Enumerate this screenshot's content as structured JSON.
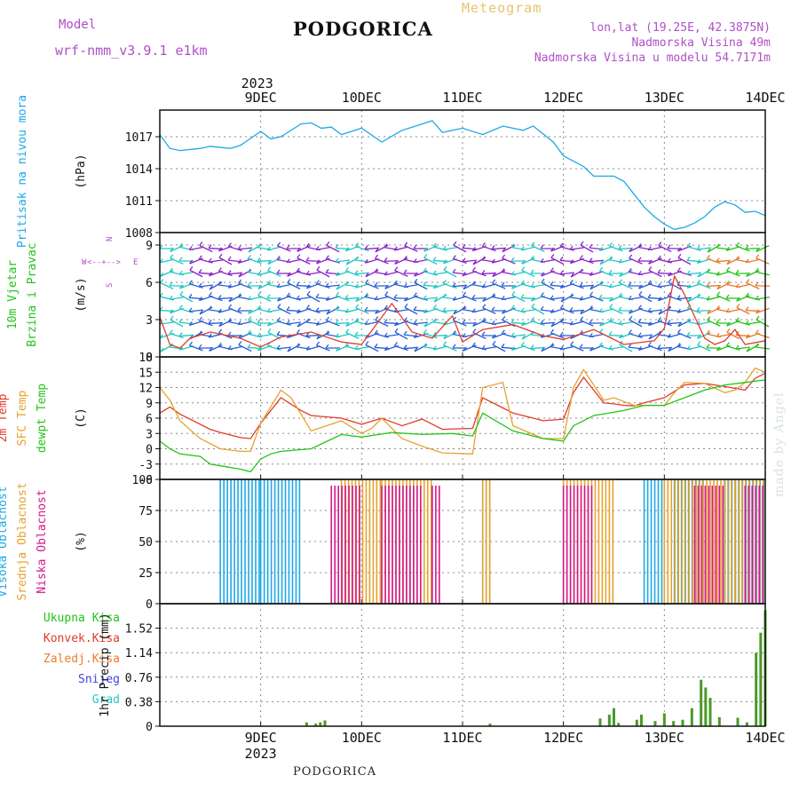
{
  "header": {
    "title": "PODGORICA",
    "meteogram": "Meteogram",
    "model_label": "Model",
    "model_name": "wrf-nmm_v3.9.1  e1km",
    "lonlat": "lon,lat (19.25E, 42.3875N)",
    "elevation": "Nadmorska Visina 49m",
    "elevation_model": "Nadmorska Visina u modelu 54.7171m"
  },
  "footer": "PODGORICA",
  "watermark": "made by Angel",
  "chart_data": {
    "type": "line",
    "time_axis": {
      "top_year": "2023",
      "bottom_year": "2023",
      "day_labels": [
        "9DEC",
        "10DEC",
        "11DEC",
        "12DEC",
        "13DEC",
        "14DEC"
      ],
      "start": "2023-12-08 12:00",
      "end": "2023-12-14 12:00"
    },
    "panels": [
      {
        "id": "pressure",
        "ylabel_lines": [
          {
            "text": "Pritisak na nivou mora",
            "color": "#1ea8e6"
          },
          {
            "text": "(hPa)",
            "color": "#111111"
          }
        ],
        "ylim": [
          1008,
          1019.5
        ],
        "yticks": [
          "1008",
          "1011",
          "1014",
          "1017"
        ],
        "series": [
          {
            "color": "#1ea8e6",
            "x": [
              0,
              0.1,
              0.2,
              0.4,
              0.5,
              0.7,
              0.8,
              1.0,
              1.1,
              1.2,
              1.4,
              1.5,
              1.6,
              1.7,
              1.8,
              2.0,
              2.2,
              2.4,
              2.5,
              2.7,
              2.8,
              3.0,
              3.2,
              3.4,
              3.6,
              3.7,
              3.9,
              4.0,
              4.2,
              4.3,
              4.5,
              4.6,
              4.7,
              4.8,
              4.9,
              5.0,
              5.1,
              5.2,
              5.3,
              5.4,
              5.5,
              5.6,
              5.7,
              5.8,
              5.9,
              6.0
            ],
            "y": [
              1017.2,
              1015.9,
              1015.7,
              1015.9,
              1016.1,
              1015.9,
              1016.2,
              1017.5,
              1016.8,
              1017.0,
              1018.2,
              1018.3,
              1017.8,
              1017.9,
              1017.2,
              1017.8,
              1016.5,
              1017.6,
              1017.9,
              1018.5,
              1017.4,
              1017.8,
              1017.2,
              1018.0,
              1017.6,
              1018.0,
              1016.5,
              1015.2,
              1014.2,
              1013.3,
              1013.3,
              1012.8,
              1011.6,
              1010.4,
              1009.5,
              1008.8,
              1008.3,
              1008.5,
              1008.9,
              1009.5,
              1010.4,
              1010.9,
              1010.6,
              1009.9,
              1010.0,
              1009.6
            ]
          }
        ]
      },
      {
        "id": "wind",
        "ylabel_lines": [
          {
            "text": "10m Vjetar",
            "color": "#22c41a"
          },
          {
            "text": "Brzina i Pravac",
            "color": "#22c41a"
          },
          {
            "text": "(m/s)",
            "color": "#111111"
          }
        ],
        "compass": [
          "W",
          "E",
          "N",
          "S"
        ],
        "ylim": [
          0,
          10
        ],
        "yticks": [
          "0",
          "3",
          "6",
          "9"
        ],
        "series": [
          {
            "color": "#e23a2a",
            "x": [
              0,
              0.1,
              0.2,
              0.3,
              0.5,
              0.8,
              1.0,
              1.2,
              1.5,
              1.8,
              2.0,
              2.3,
              2.5,
              2.7,
              2.9,
              3.0,
              3.2,
              3.5,
              3.8,
              4.0,
              4.3,
              4.6,
              4.9,
              5.0,
              5.1,
              5.2,
              5.4,
              5.5,
              5.6,
              5.7,
              5.8,
              6.0
            ],
            "y": [
              3.2,
              1.0,
              0.7,
              1.5,
              2.0,
              1.5,
              0.8,
              1.6,
              2.0,
              1.2,
              1.0,
              4.3,
              2.0,
              1.5,
              3.3,
              1.2,
              2.2,
              2.6,
              1.7,
              1.4,
              2.2,
              1.0,
              1.3,
              2.3,
              6.5,
              5.0,
              1.5,
              1.0,
              1.3,
              2.2,
              1.0,
              1.3
            ]
          }
        ]
      },
      {
        "id": "temperature",
        "ylabel_lines": [
          {
            "text": "2m Temp",
            "color": "#e23a2a"
          },
          {
            "text": "SFC Temp",
            "color": "#e6a32e"
          },
          {
            "text": "dewpt Temp",
            "color": "#22c41a"
          },
          {
            "text": "(C)",
            "color": "#111111"
          }
        ],
        "ylim": [
          -6,
          18
        ],
        "yticks": [
          "-6",
          "-3",
          "0",
          "3",
          "6",
          "9",
          "12",
          "15",
          "18"
        ],
        "series": [
          {
            "name": "2m Temp",
            "color": "#e23a2a",
            "x": [
              0,
              0.1,
              0.2,
              0.5,
              0.6,
              0.8,
              0.9,
              1.0,
              1.2,
              1.4,
              1.5,
              1.8,
              2.0,
              2.2,
              2.4,
              2.6,
              2.8,
              3.1,
              3.2,
              3.4,
              3.5,
              3.8,
              4.0,
              4.1,
              4.2,
              4.4,
              4.5,
              4.6,
              4.7,
              4.8,
              5.0,
              5.2,
              5.4,
              5.6,
              5.8,
              5.9,
              6.0
            ],
            "y": [
              7.0,
              8.2,
              6.8,
              3.8,
              3.2,
              2.2,
              2.0,
              5.0,
              10.0,
              7.5,
              6.5,
              6.0,
              4.8,
              6.0,
              4.5,
              5.8,
              3.8,
              4.0,
              10.0,
              8.0,
              7.0,
              5.5,
              5.8,
              11.0,
              14.0,
              9.0,
              8.8,
              8.5,
              8.4,
              9.0,
              10.0,
              12.5,
              12.8,
              12.2,
              11.5,
              13.8,
              14.8
            ]
          },
          {
            "name": "SFC Temp",
            "color": "#e6a32e",
            "x": [
              0,
              0.1,
              0.2,
              0.4,
              0.6,
              0.8,
              0.9,
              1.0,
              1.2,
              1.3,
              1.5,
              1.8,
              2.0,
              2.1,
              2.2,
              2.4,
              2.6,
              2.8,
              3.1,
              3.2,
              3.4,
              3.5,
              3.8,
              4.0,
              4.1,
              4.2,
              4.4,
              4.5,
              4.7,
              5.0,
              5.1,
              5.2,
              5.4,
              5.6,
              5.7,
              5.8,
              5.9,
              6.0
            ],
            "y": [
              12.0,
              9.5,
              5.5,
              2.0,
              0.0,
              -0.5,
              -0.5,
              5.0,
              11.5,
              10.0,
              3.5,
              5.5,
              3.0,
              4.0,
              6.0,
              2.0,
              0.5,
              -0.8,
              -1.0,
              12.0,
              13.0,
              4.5,
              2.0,
              2.0,
              12.0,
              15.5,
              9.5,
              10.0,
              8.5,
              8.5,
              11.0,
              13.0,
              12.8,
              11.0,
              11.5,
              13.0,
              15.8,
              15.0
            ]
          },
          {
            "name": "dewpt Temp",
            "color": "#22c41a",
            "x": [
              0,
              0.1,
              0.2,
              0.4,
              0.5,
              0.8,
              0.9,
              1.0,
              1.1,
              1.2,
              1.5,
              1.8,
              2.0,
              2.3,
              2.6,
              2.9,
              3.1,
              3.2,
              3.5,
              3.8,
              4.0,
              4.1,
              4.3,
              4.6,
              4.8,
              5.0,
              5.2,
              5.4,
              5.6,
              5.8,
              6.0
            ],
            "y": [
              1.5,
              0.0,
              -1.0,
              -1.5,
              -3.0,
              -4.0,
              -4.5,
              -2.0,
              -1.0,
              -0.5,
              0.0,
              2.8,
              2.3,
              3.2,
              2.8,
              3.0,
              2.5,
              7.0,
              3.5,
              2.0,
              1.5,
              4.5,
              6.5,
              7.5,
              8.5,
              8.5,
              10.0,
              11.5,
              12.5,
              13.0,
              13.5
            ]
          }
        ]
      },
      {
        "id": "clouds",
        "ylabel_lines": [
          {
            "text": "Visoka Oblacnost",
            "color": "#1ea8e6"
          },
          {
            "text": "Srednja Oblacnost",
            "color": "#e6a32e"
          },
          {
            "text": "Niska Oblacnost",
            "color": "#d4188f"
          },
          {
            "text": "(%)",
            "color": "#111111"
          }
        ],
        "ylim": [
          0,
          100
        ],
        "yticks": [
          "0",
          "25",
          "50",
          "75",
          "100"
        ],
        "bar_groups": [
          {
            "name": "Visoka Oblacnost",
            "color": "#1ea8e6",
            "from": [
              0.6,
              1.0,
              3.2,
              4.8,
              5.1,
              5.6
            ],
            "to": [
              1.0,
              1.4,
              3.3,
              5.0,
              5.4,
              6.0
            ],
            "value": 100
          },
          {
            "name": "Srednja Oblacnost",
            "color": "#e6a32e",
            "from": [
              1.8,
              2.2,
              3.2,
              4.0,
              5.0,
              5.7
            ],
            "to": [
              2.2,
              2.7,
              3.3,
              4.5,
              5.8,
              6.0
            ],
            "value": 100
          },
          {
            "name": "Niska Oblacnost",
            "color": "#d4188f",
            "from": [
              1.7,
              2.2,
              2.7,
              4.0,
              5.3,
              5.8
            ],
            "to": [
              2.0,
              2.6,
              2.8,
              4.3,
              5.6,
              6.0
            ],
            "value": 95
          }
        ]
      },
      {
        "id": "precip",
        "ylabel_lines": [
          {
            "text": "1hr Precip (mm)",
            "color": "#111111"
          }
        ],
        "legend": [
          {
            "text": "Ukupna Kisa",
            "color": "#22c41a"
          },
          {
            "text": "Konvek.Kisa",
            "color": "#e23a2a"
          },
          {
            "text": "Zaledj.Kisa",
            "color": "#ee7a2a"
          },
          {
            "text": "Snijeg",
            "color": "#4444dd"
          },
          {
            "text": "Grad",
            "color": "#22c8c0"
          }
        ],
        "ylim": [
          0,
          1.9
        ],
        "yticks": [
          "0",
          "0.38",
          "0.76",
          "1.14",
          "1.52"
        ],
        "bars": [
          {
            "x": 1.6,
            "v": 0.06
          },
          {
            "x": 1.7,
            "v": 0.04
          },
          {
            "x": 1.75,
            "v": 0.06
          },
          {
            "x": 1.8,
            "v": 0.09
          },
          {
            "x": 3.6,
            "v": 0.04
          },
          {
            "x": 4.8,
            "v": 0.12
          },
          {
            "x": 4.9,
            "v": 0.18
          },
          {
            "x": 4.95,
            "v": 0.28
          },
          {
            "x": 5.0,
            "v": 0.05
          },
          {
            "x": 5.2,
            "v": 0.1
          },
          {
            "x": 5.25,
            "v": 0.18
          },
          {
            "x": 5.4,
            "v": 0.08
          },
          {
            "x": 5.5,
            "v": 0.2
          },
          {
            "x": 5.6,
            "v": 0.08
          },
          {
            "x": 5.7,
            "v": 0.1
          },
          {
            "x": 5.8,
            "v": 0.28
          },
          {
            "x": 5.9,
            "v": 0.72
          },
          {
            "x": 5.95,
            "v": 0.6
          },
          {
            "x": 6.0,
            "v": 0.44
          },
          {
            "x": 6.1,
            "v": 0.14
          },
          {
            "x": 6.3,
            "v": 0.13
          },
          {
            "x": 6.4,
            "v": 0.06
          },
          {
            "x": 6.5,
            "v": 1.14
          },
          {
            "x": 6.55,
            "v": 1.45
          },
          {
            "x": 6.6,
            "v": 1.8
          }
        ]
      }
    ]
  },
  "colors": {
    "frame": "#111111",
    "grid": "#888888",
    "wind_purple": "#8a24c8",
    "wind_blue": "#2a5fd6",
    "wind_cyan": "#22c8c0",
    "wind_green": "#22c41a"
  }
}
